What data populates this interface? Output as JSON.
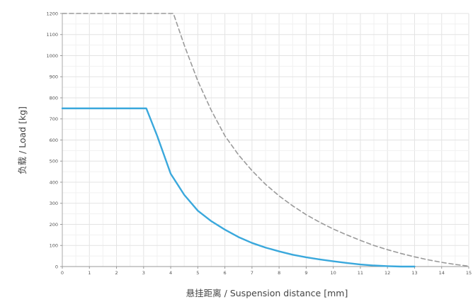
{
  "chart_data": {
    "type": "line",
    "title": "",
    "xlabel": "悬挂距离 / Suspension distance [mm]",
    "ylabel": "负载 / Load [kg]",
    "xlim": [
      0,
      15
    ],
    "ylim": [
      0,
      1200
    ],
    "x_ticks": [
      0,
      1,
      2,
      3,
      4,
      5,
      6,
      7,
      8,
      9,
      10,
      11,
      12,
      13,
      14,
      15
    ],
    "y_ticks": [
      0,
      100,
      200,
      300,
      400,
      500,
      600,
      700,
      800,
      900,
      1000,
      1100,
      1200
    ],
    "grid": true,
    "legend": "none",
    "series": [
      {
        "style": "solid",
        "color": "#3aa8dc",
        "x": [
          0,
          1,
          2,
          3,
          3.1,
          3.5,
          4,
          4.5,
          5,
          5.5,
          6,
          6.5,
          7,
          7.5,
          8,
          8.5,
          9,
          9.5,
          10,
          10.5,
          11,
          11.5,
          12,
          12.5,
          13
        ],
        "y": [
          750,
          750,
          750,
          750,
          750,
          620,
          440,
          340,
          265,
          215,
          175,
          140,
          112,
          90,
          72,
          56,
          44,
          34,
          25,
          17,
          10,
          5,
          2,
          0,
          0
        ]
      },
      {
        "style": "dashed",
        "color": "#9a9a9a",
        "x": [
          0,
          1,
          2,
          3,
          4,
          4.1,
          4.5,
          5,
          5.5,
          6,
          6.5,
          7,
          7.5,
          8,
          8.5,
          9,
          9.5,
          10,
          10.5,
          11,
          11.5,
          12,
          12.5,
          13,
          13.5,
          14,
          14.5,
          15
        ],
        "y": [
          1200,
          1200,
          1200,
          1200,
          1200,
          1200,
          1050,
          880,
          740,
          620,
          530,
          455,
          390,
          335,
          288,
          246,
          210,
          178,
          150,
          124,
          100,
          80,
          62,
          46,
          32,
          20,
          10,
          2
        ]
      }
    ]
  }
}
